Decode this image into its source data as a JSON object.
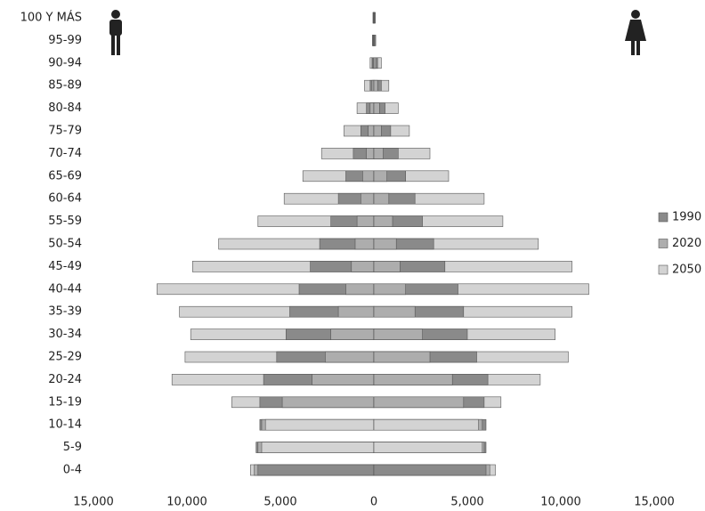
{
  "chart_data": {
    "type": "pyramid",
    "categories": [
      "100 Y MÁS",
      "95-99",
      "90-94",
      "85-89",
      "80-84",
      "75-79",
      "70-74",
      "65-69",
      "60-64",
      "55-59",
      "50-54",
      "45-49",
      "40-44",
      "35-39",
      "30-34",
      "25-29",
      "20-24",
      "15-19",
      "10-14",
      "5-9",
      "0-4"
    ],
    "series": [
      {
        "name": "1990",
        "color": "#8a8a8a",
        "male": [
          -30,
          -50,
          -100,
          -200,
          -400,
          -700,
          -1100,
          -1500,
          -1900,
          -2300,
          -2900,
          -3400,
          -4000,
          -4500,
          -4700,
          -5200,
          -5900,
          -6100,
          -6100,
          -6300,
          -6200
        ],
        "female": [
          50,
          60,
          200,
          400,
          600,
          900,
          1300,
          1700,
          2200,
          2600,
          3200,
          3800,
          4500,
          4800,
          5000,
          5500,
          6100,
          5900,
          6000,
          6000,
          6000
        ]
      },
      {
        "name": "2020",
        "color": "#adadad",
        "male": [
          -10,
          -20,
          -50,
          -100,
          -200,
          -300,
          -400,
          -600,
          -700,
          -900,
          -1000,
          -1200,
          -1500,
          -1900,
          -2300,
          -2600,
          -3300,
          -4900,
          -6000,
          -6200,
          -6400
        ],
        "female": [
          20,
          30,
          100,
          200,
          300,
          400,
          500,
          700,
          800,
          1000,
          1200,
          1400,
          1700,
          2200,
          2600,
          3000,
          4200,
          4800,
          5800,
          5900,
          6200
        ]
      },
      {
        "name": "2050",
        "color": "#d3d3d3",
        "male": [
          -50,
          -80,
          -200,
          -500,
          -900,
          -1600,
          -2800,
          -3800,
          -4800,
          -6200,
          -8300,
          -9700,
          -11600,
          -10400,
          -9800,
          -10100,
          -10800,
          -7600,
          -5800,
          -6000,
          -6600
        ],
        "female": [
          80,
          100,
          400,
          800,
          1300,
          1900,
          3000,
          4000,
          5900,
          6900,
          8800,
          10600,
          11500,
          10600,
          9700,
          10400,
          8900,
          6800,
          5600,
          5800,
          6500
        ]
      }
    ],
    "xlim": [
      -15000,
      15000
    ],
    "xticks": [
      {
        "value": -15000,
        "label": "15,000"
      },
      {
        "value": -10000,
        "label": "10,000"
      },
      {
        "value": -5000,
        "label": "5,000"
      },
      0,
      {
        "value": 5000,
        "label": "5,000"
      },
      {
        "value": 10000,
        "label": "10,000"
      },
      {
        "value": 15000,
        "label": "15,000"
      }
    ]
  }
}
